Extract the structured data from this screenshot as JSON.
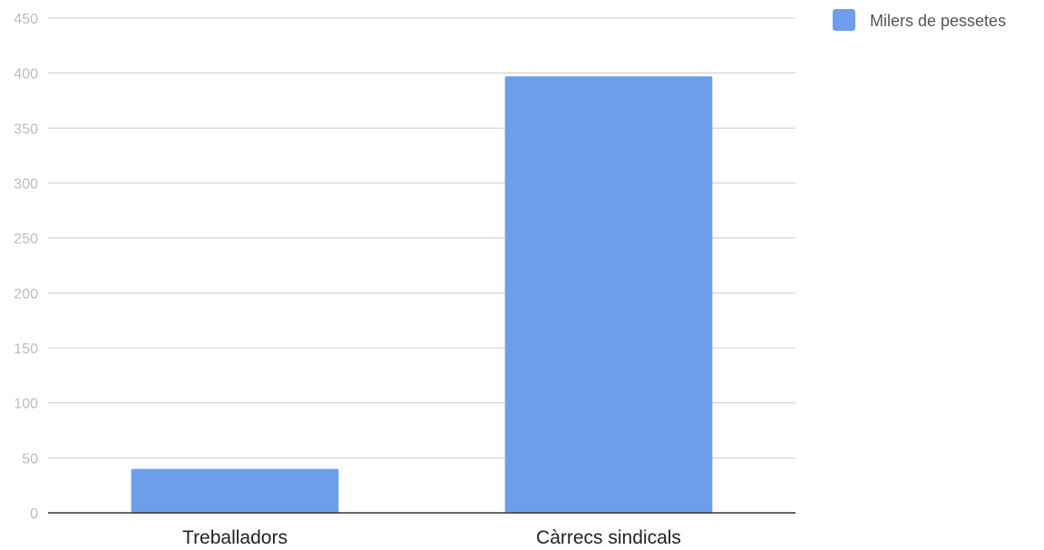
{
  "chart_data": {
    "type": "bar",
    "title": "",
    "xlabel": "",
    "ylabel": "",
    "categories": [
      "Treballadors",
      "Càrrecs sindicals"
    ],
    "series": [
      {
        "name": "Milers de pessetes",
        "values": [
          40,
          397
        ],
        "color": "#6d9eeb"
      }
    ],
    "ylim": [
      0,
      450
    ],
    "yticks": [
      0,
      50,
      100,
      150,
      200,
      250,
      300,
      350,
      400,
      450
    ],
    "grid": true,
    "legend_position": "top-right"
  }
}
